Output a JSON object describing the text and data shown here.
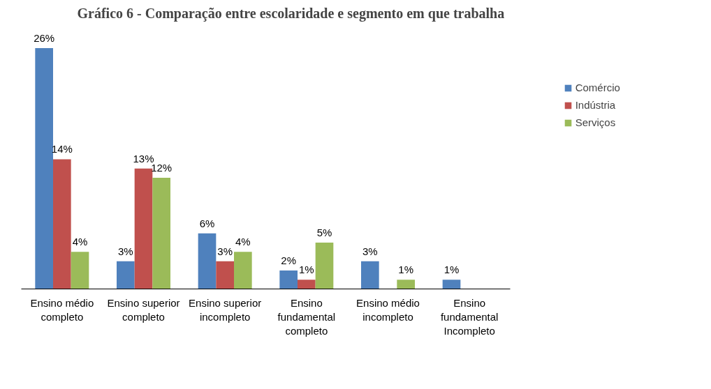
{
  "chart_data": {
    "type": "bar",
    "title": "Gráfico 6 - Comparação entre escolaridade e segmento em que trabalha",
    "categories": [
      "Ensino médio completo",
      "Ensino superior completo",
      "Ensino superior incompleto",
      "Ensino fundamental completo",
      "Ensino médio incompleto",
      "Ensino fundamental Incompleto"
    ],
    "series": [
      {
        "name": "Comércio",
        "color": "#4f81bd",
        "values": [
          26,
          3,
          6,
          2,
          3,
          1
        ],
        "value_labels": [
          "26%",
          "3%",
          "6%",
          "2%",
          "3%",
          "1%"
        ]
      },
      {
        "name": "Indústria",
        "color": "#c0504d",
        "values": [
          14,
          13,
          3,
          1,
          null,
          null
        ],
        "value_labels": [
          "14%",
          "13%",
          "3%",
          "1%",
          null,
          null
        ]
      },
      {
        "name": "Serviços",
        "color": "#9bbb59",
        "values": [
          4,
          12,
          4,
          5,
          1,
          null
        ],
        "value_labels": [
          "4%",
          "12%",
          "4%",
          "5%",
          "1%",
          null
        ]
      }
    ],
    "legend": "right",
    "grid": false,
    "tick_labels": "x"
  }
}
